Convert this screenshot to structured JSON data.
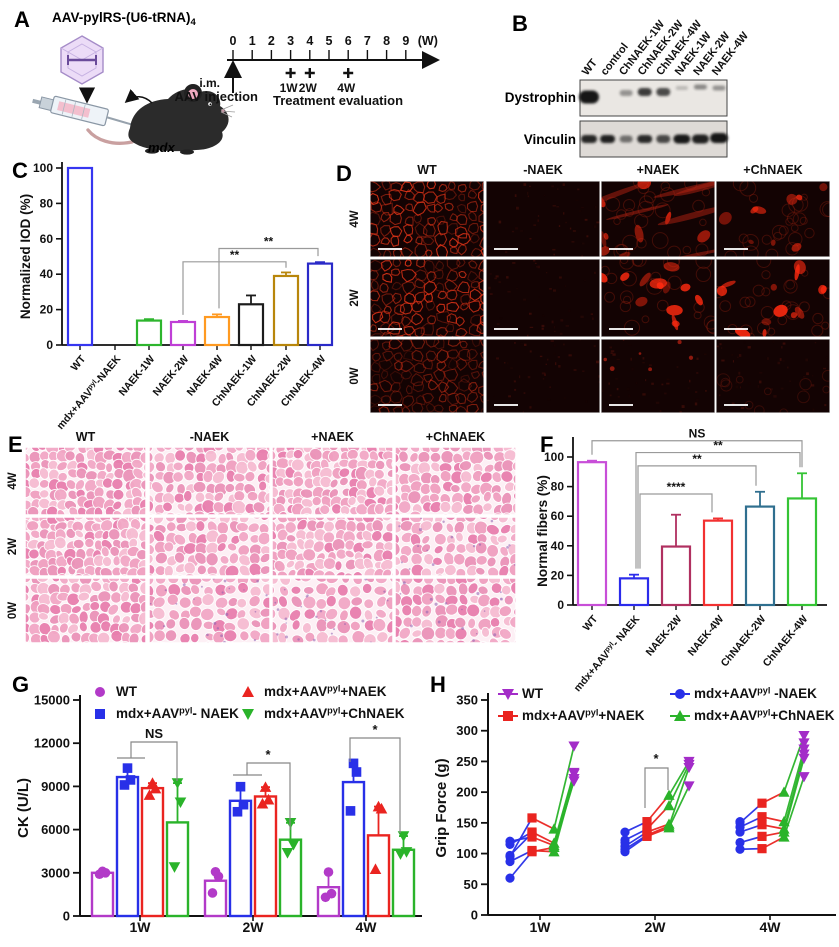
{
  "panels": {
    "A": {
      "label": "A",
      "title": "AAV-pylRS-(U6-tRNA)",
      "title_sub": "4",
      "mouse_label": "mdx",
      "timeline": {
        "ticks": [
          "0",
          "1",
          "2",
          "3",
          "4",
          "5",
          "6",
          "7",
          "8",
          "9"
        ],
        "unit": "(W)",
        "im": "i.m.",
        "injection": "AAV injection",
        "treatment": "Treatment evaluation",
        "marks": [
          {
            "tick": 3,
            "label": "1W"
          },
          {
            "tick": 4,
            "label": "2W"
          },
          {
            "tick": 6,
            "label": "4W"
          }
        ]
      }
    },
    "B": {
      "label": "B",
      "lanes": [
        "WT",
        "control",
        "ChNAEK-1W",
        "ChNAEK-2W",
        "ChNAEK-4W",
        "NAEK-1W",
        "NAEK-2W",
        "NAEK-4W"
      ],
      "blots": [
        {
          "name": "Dystrophin",
          "band_opacity": [
            1,
            0,
            0.4,
            0.82,
            0.75,
            0.22,
            0.45,
            0.4
          ],
          "band_height": [
            13,
            0,
            6,
            8,
            8,
            4,
            5,
            5
          ],
          "band_yc": [
            97,
            0,
            93,
            92,
            92,
            88,
            87,
            88
          ],
          "band_w": [
            20,
            0,
            13,
            14,
            14,
            12,
            13,
            13
          ]
        },
        {
          "name": "Vinculin",
          "band_opacity": [
            0.92,
            0.95,
            0.55,
            0.9,
            0.75,
            0.98,
            0.95,
            1
          ],
          "band_height": [
            8,
            8,
            7,
            8,
            8,
            9,
            9,
            10
          ],
          "band_yc": [
            139,
            139,
            139,
            139,
            139,
            139,
            139,
            138
          ],
          "band_w": [
            16,
            15,
            13,
            15,
            14,
            17,
            17,
            18
          ]
        }
      ]
    },
    "D": {
      "label": "D",
      "columns": [
        "WT",
        "-NAEK",
        "+NAEK",
        "+ChNAEK"
      ],
      "rows": [
        "4W",
        "2W",
        "0W"
      ],
      "tiles": [
        [
          "network",
          "dark",
          "patchy-streaks",
          "patchy-rings"
        ],
        [
          "network",
          "dark",
          "patchy-bright",
          "patchy-bright"
        ],
        [
          "network-dim",
          "dark",
          "dark-sparse",
          "dark-faint"
        ]
      ]
    },
    "E": {
      "label": "E",
      "columns": [
        "WT",
        "-NAEK",
        "+NAEK",
        "+ChNAEK"
      ],
      "rows": [
        "4W",
        "2W",
        "0W"
      ],
      "tiles": [
        [
          0.15,
          0.28,
          0.1,
          0.3
        ],
        [
          0.1,
          0.35,
          0.2,
          0.4
        ],
        [
          0.25,
          0.55,
          0.6,
          0.45
        ]
      ]
    },
    "C": {
      "label": "C"
    },
    "F": {
      "label": "F"
    },
    "G": {
      "label": "G",
      "legend_cols": [
        [
          0,
          1
        ],
        [
          2,
          3
        ]
      ]
    },
    "H": {
      "label": "H",
      "legend_cols": [
        [
          0,
          2
        ],
        [
          1,
          3
        ]
      ]
    }
  },
  "chart_data": [
    {
      "id": "C",
      "type": "bar",
      "ylabel": "Normalized IOD (%)",
      "ylim": [
        0,
        100
      ],
      "yticks": [
        0,
        20,
        40,
        60,
        80,
        100
      ],
      "categories": [
        "WT",
        "mdx+AAV^{pyl}-NAEK",
        "NAEK-1W",
        "NAEK-2W",
        "NAEK-4W",
        "ChNAEK-1W",
        "ChNAEK-2W",
        "ChNAEK-4W"
      ],
      "values": [
        100,
        0,
        13.8,
        13,
        15.8,
        23,
        39,
        46
      ],
      "errors": [
        0,
        0,
        0.8,
        0.6,
        1.5,
        5,
        2,
        0.8
      ],
      "bar_colors": [
        "#3636f0",
        "#777777",
        "#2db52d",
        "#bf3fd6",
        "#ff9a21",
        "#1c1c1c",
        "#b8860b",
        "#2a2ac8"
      ],
      "significance": [
        {
          "from": 3,
          "to": 6,
          "label": "**",
          "level": 47
        },
        {
          "from": 4,
          "to": 7,
          "label": "**",
          "level": 54.5
        }
      ]
    },
    {
      "id": "F",
      "type": "bar",
      "ylabel": "Normal fibers (%)",
      "ylim": [
        0,
        100
      ],
      "yticks": [
        0,
        20,
        40,
        60,
        80,
        100
      ],
      "categories": [
        "WT",
        "mdx+AAV^{pyl}- NAEK",
        "NAEK-2W",
        "NAEK-4W",
        "ChNAEK-2W",
        "ChNAEK-4W"
      ],
      "values": [
        96.5,
        18,
        39.5,
        57,
        66.5,
        72
      ],
      "errors": [
        1,
        2.5,
        21.5,
        1.5,
        10,
        17
      ],
      "bar_colors": [
        "#c84fd8",
        "#2b2beb",
        "#b03060",
        "#f23131",
        "#2f6f8f",
        "#35c435"
      ],
      "significance": [
        {
          "from": 0,
          "to": 5,
          "label": "NS",
          "level": 111
        },
        {
          "from": 1,
          "to": 5,
          "label": "**",
          "level": 103
        },
        {
          "from": 1,
          "to": 4,
          "label": "**",
          "level": 94
        },
        {
          "from": 1,
          "to": 3,
          "label": "****",
          "level": 75
        }
      ]
    },
    {
      "id": "G",
      "type": "grouped-bar-scatter",
      "ylabel": "CK (U/L)",
      "ylim": [
        0,
        15000
      ],
      "yticks": [
        0,
        3000,
        6000,
        9000,
        12000,
        15000
      ],
      "groups": [
        "1W",
        "2W",
        "4W"
      ],
      "series": [
        {
          "name": "WT",
          "marker": "circle",
          "color": "#b23ac8",
          "means": [
            3000,
            2450,
            2000
          ],
          "points": [
            [
              2900,
              3000,
              3100
            ],
            [
              1600,
              2750,
              3070
            ],
            [
              1300,
              1550,
              3050
            ]
          ]
        },
        {
          "name": "mdx+AAV^{pyl}- NAEK",
          "marker": "square",
          "color": "#2830e8",
          "means": [
            9650,
            8000,
            9300
          ],
          "points": [
            [
              9100,
              9450,
              10270
            ],
            [
              7240,
              7730,
              8980
            ],
            [
              7300,
              10000,
              10600
            ]
          ]
        },
        {
          "name": "mdx+AAV^{pyl}+NAEK",
          "marker": "tri-up",
          "color": "#ea2420",
          "means": [
            8880,
            8300,
            5600
          ],
          "points": [
            [
              8400,
              8850,
              9230
            ],
            [
              7800,
              8080,
              8950
            ],
            [
              3250,
              7450,
              7600
            ]
          ]
        },
        {
          "name": "mdx+AAV^{pyl}+ChNAEK",
          "marker": "tri-down",
          "color": "#2ab32a",
          "means": [
            6500,
            5300,
            4600
          ],
          "points": [
            [
              3400,
              7900,
              9230
            ],
            [
              4390,
              4950,
              6470
            ],
            [
              4300,
              4450,
              5550
            ]
          ]
        }
      ],
      "significance": [
        {
          "group": 0,
          "between": [
            1,
            3
          ],
          "label": "NS"
        },
        {
          "group": 1,
          "between": [
            2,
            3
          ],
          "label": "*"
        },
        {
          "group": 2,
          "between": [
            1,
            3
          ],
          "label": "*"
        }
      ]
    },
    {
      "id": "H",
      "type": "paired-scatter-line",
      "ylabel": "Grip  Force (g)",
      "ylim": [
        0,
        350
      ],
      "yticks": [
        0,
        50,
        100,
        150,
        200,
        250,
        300,
        350
      ],
      "groups": [
        "1W",
        "2W",
        "4W"
      ],
      "series": [
        {
          "name": "WT",
          "marker": "tri-down",
          "color": "#a32cc8"
        },
        {
          "name": "mdx+AAV^{pyl} -NAEK",
          "marker": "circle",
          "color": "#2830e8"
        },
        {
          "name": "mdx+AAV^{pyl}+NAEK",
          "marker": "square",
          "color": "#ea2420"
        },
        {
          "name": "mdx+AAV^{pyl}+ChNAEK",
          "marker": "tri-up",
          "color": "#2ab32a"
        }
      ],
      "cluster_series_index": [
        1,
        2,
        3,
        0
      ],
      "values": [
        {
          "group": "1W",
          "clusters": [
            [
              60,
              95,
              87,
              115,
              120,
              97
            ],
            [
              103,
              158,
              105,
              135,
              127,
              133
            ],
            [
              110,
              140,
              103,
              117,
              113
            ],
            [
              218,
              275,
              222,
              232,
              230
            ]
          ]
        },
        {
          "group": "2W",
          "clusters": [
            [
              103,
              135,
              107,
              122,
              112,
              118
            ],
            [
              128,
              152,
              130,
              140,
              135
            ],
            [
              142,
              195,
              145,
              178,
              148
            ],
            [
              210,
              250,
              240,
              245
            ]
          ]
        },
        {
          "group": "4W",
          "clusters": [
            [
              107,
              150,
              118,
              143,
              135,
              152
            ],
            [
              108,
              182,
              128,
              160,
              147
            ],
            [
              127,
              200,
              135,
              152,
              140
            ],
            [
              225,
              292,
              255,
              270,
              262,
              280
            ]
          ]
        }
      ],
      "significance": [
        {
          "group": 1,
          "between_clusters": [
            1,
            2
          ],
          "label": "*"
        }
      ]
    }
  ]
}
